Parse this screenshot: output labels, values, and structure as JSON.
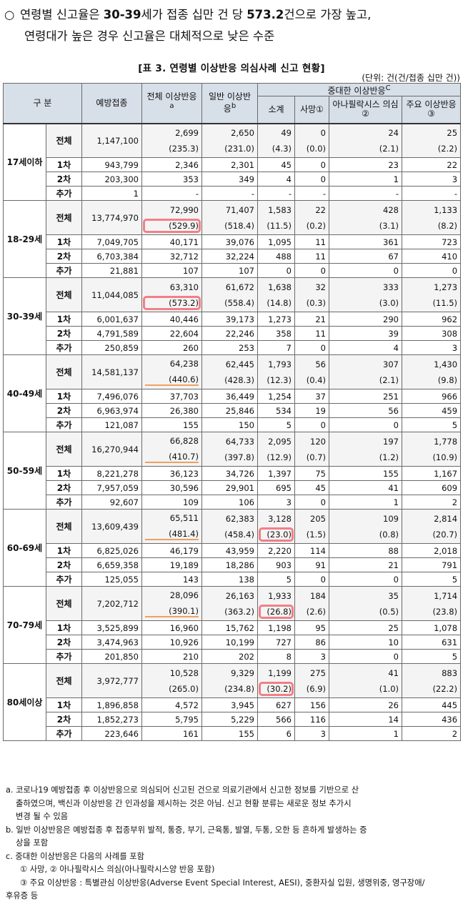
{
  "intro": {
    "line1_pre": "연령별 신고율은 ",
    "line1_bold1": "30-39",
    "line1_mid": "세가 접종 십만 건 당 ",
    "line1_bold2": "573.2",
    "line1_post": "건으로 가장 높고,",
    "line2": "연령대가 높은 경우 신고율은 대체적으로 낮은 수준"
  },
  "caption": "[표 3. 연령별 이상반응 의심사례 신고 현황]",
  "unit": "(단위: 건(건/접종 십만 건))",
  "headers": {
    "category": "구 분",
    "vaccinations": "예방접종",
    "total_ae": "전체 이상반응",
    "total_ae_sup": "a",
    "general_ae": "일반 이상반응",
    "general_ae_sup": "b",
    "serious_ae": "중대한 이상반응",
    "serious_ae_sup": "C",
    "subtotal": "소계",
    "death": "사망",
    "death_sup": "①",
    "anaphylaxis": "아나필락시스 의심",
    "anaphylaxis_sup": "②",
    "major": "주요 이상반응",
    "major_sup": "③"
  },
  "groups": [
    {
      "label": "17세이하",
      "rows": [
        {
          "sub": "전체",
          "v": "1,147,100",
          "t": "2,699",
          "tr": "(235.3)",
          "g": "2,650",
          "gr": "(231.0)",
          "s": "49",
          "sr": "(4.3)",
          "d": "0",
          "dr": "(0.0)",
          "a": "24",
          "ar": "(2.1)",
          "m": "25",
          "mr": "(2.2)"
        },
        {
          "sub": "1차",
          "v": "943,799",
          "t": "2,346",
          "g": "2,301",
          "s": "45",
          "d": "0",
          "a": "23",
          "m": "22"
        },
        {
          "sub": "2차",
          "v": "203,300",
          "t": "353",
          "g": "349",
          "s": "4",
          "d": "0",
          "a": "1",
          "m": "3"
        },
        {
          "sub": "추가",
          "v": "1",
          "t": "-",
          "g": "-",
          "s": "-",
          "d": "-",
          "a": "-",
          "m": "-"
        }
      ]
    },
    {
      "label": "18-29세",
      "rows": [
        {
          "sub": "전체",
          "v": "13,774,970",
          "t": "72,990",
          "tr": "(529.9)",
          "g": "71,407",
          "gr": "(518.4)",
          "s": "1,583",
          "sr": "(11.5)",
          "d": "22",
          "dr": "(0.2)",
          "a": "428",
          "ar": "(3.1)",
          "m": "1,133",
          "mr": "(8.2)"
        },
        {
          "sub": "1차",
          "v": "7,049,705",
          "t": "40,171",
          "g": "39,076",
          "s": "1,095",
          "d": "11",
          "a": "361",
          "m": "723"
        },
        {
          "sub": "2차",
          "v": "6,703,384",
          "t": "32,712",
          "g": "32,224",
          "s": "488",
          "d": "11",
          "a": "67",
          "m": "410"
        },
        {
          "sub": "추가",
          "v": "21,881",
          "t": "107",
          "g": "107",
          "s": "0",
          "d": "0",
          "a": "0",
          "m": "0"
        }
      ]
    },
    {
      "label": "30-39세",
      "rows": [
        {
          "sub": "전체",
          "v": "11,044,085",
          "t": "63,310",
          "tr": "(573.2)",
          "g": "61,672",
          "gr": "(558.4)",
          "s": "1,638",
          "sr": "(14.8)",
          "d": "32",
          "dr": "(0.3)",
          "a": "333",
          "ar": "(3.0)",
          "m": "1,273",
          "mr": "(11.5)"
        },
        {
          "sub": "1차",
          "v": "6,001,637",
          "t": "40,446",
          "g": "39,173",
          "s": "1,273",
          "d": "21",
          "a": "290",
          "m": "962"
        },
        {
          "sub": "2차",
          "v": "4,791,589",
          "t": "22,604",
          "g": "22,246",
          "s": "358",
          "d": "11",
          "a": "39",
          "m": "308"
        },
        {
          "sub": "추가",
          "v": "250,859",
          "t": "260",
          "g": "253",
          "s": "7",
          "d": "0",
          "a": "4",
          "m": "3"
        }
      ]
    },
    {
      "label": "40-49세",
      "rows": [
        {
          "sub": "전체",
          "v": "14,581,137",
          "t": "64,238",
          "tr": "(440.6)",
          "g": "62,445",
          "gr": "(428.3)",
          "s": "1,793",
          "sr": "(12.3)",
          "d": "56",
          "dr": "(0.4)",
          "a": "307",
          "ar": "(2.1)",
          "m": "1,430",
          "mr": "(9.8)"
        },
        {
          "sub": "1차",
          "v": "7,496,076",
          "t": "37,703",
          "g": "36,449",
          "s": "1,254",
          "d": "37",
          "a": "251",
          "m": "966"
        },
        {
          "sub": "2차",
          "v": "6,963,974",
          "t": "26,380",
          "g": "25,846",
          "s": "534",
          "d": "19",
          "a": "56",
          "m": "459"
        },
        {
          "sub": "추가",
          "v": "121,087",
          "t": "155",
          "g": "150",
          "s": "5",
          "d": "0",
          "a": "0",
          "m": "5"
        }
      ]
    },
    {
      "label": "50-59세",
      "rows": [
        {
          "sub": "전체",
          "v": "16,270,944",
          "t": "66,828",
          "tr": "(410.7)",
          "g": "64,733",
          "gr": "(397.8)",
          "s": "2,095",
          "sr": "(12.9)",
          "d": "120",
          "dr": "(0.7)",
          "a": "197",
          "ar": "(1.2)",
          "m": "1,778",
          "mr": "(10.9)"
        },
        {
          "sub": "1차",
          "v": "8,221,278",
          "t": "36,123",
          "g": "34,726",
          "s": "1,397",
          "d": "75",
          "a": "155",
          "m": "1,167"
        },
        {
          "sub": "2차",
          "v": "7,957,059",
          "t": "30,596",
          "g": "29,901",
          "s": "695",
          "d": "45",
          "a": "41",
          "m": "609"
        },
        {
          "sub": "추가",
          "v": "92,607",
          "t": "109",
          "g": "106",
          "s": "3",
          "d": "0",
          "a": "1",
          "m": "2"
        }
      ]
    },
    {
      "label": "60-69세",
      "rows": [
        {
          "sub": "전체",
          "v": "13,609,439",
          "t": "65,511",
          "tr": "(481.4)",
          "g": "62,383",
          "gr": "(458.4)",
          "s": "3,128",
          "sr": "(23.0)",
          "d": "205",
          "dr": "(1.5)",
          "a": "109",
          "ar": "(0.8)",
          "m": "2,814",
          "mr": "(20.7)"
        },
        {
          "sub": "1차",
          "v": "6,825,026",
          "t": "46,179",
          "g": "43,959",
          "s": "2,220",
          "d": "114",
          "a": "88",
          "m": "2,018"
        },
        {
          "sub": "2차",
          "v": "6,659,358",
          "t": "19,189",
          "g": "18,286",
          "s": "903",
          "d": "91",
          "a": "21",
          "m": "791"
        },
        {
          "sub": "추가",
          "v": "125,055",
          "t": "143",
          "g": "138",
          "s": "5",
          "d": "0",
          "a": "0",
          "m": "5"
        }
      ]
    },
    {
      "label": "70-79세",
      "rows": [
        {
          "sub": "전체",
          "v": "7,202,712",
          "t": "28,096",
          "tr": "(390.1)",
          "g": "26,163",
          "gr": "(363.2)",
          "s": "1,933",
          "sr": "(26.8)",
          "d": "184",
          "dr": "(2.6)",
          "a": "35",
          "ar": "(0.5)",
          "m": "1,714",
          "mr": "(23.8)"
        },
        {
          "sub": "1차",
          "v": "3,525,899",
          "t": "16,960",
          "g": "15,762",
          "s": "1,198",
          "d": "95",
          "a": "25",
          "m": "1,078"
        },
        {
          "sub": "2차",
          "v": "3,474,963",
          "t": "10,926",
          "g": "10,199",
          "s": "727",
          "d": "86",
          "a": "10",
          "m": "631"
        },
        {
          "sub": "추가",
          "v": "201,850",
          "t": "210",
          "g": "202",
          "s": "8",
          "d": "3",
          "a": "0",
          "m": "5"
        }
      ]
    },
    {
      "label": "80세이상",
      "rows": [
        {
          "sub": "전체",
          "v": "3,972,777",
          "t": "10,528",
          "tr": "(265.0)",
          "g": "9,329",
          "gr": "(234.8)",
          "s": "1,199",
          "sr": "(30.2)",
          "d": "275",
          "dr": "(6.9)",
          "a": "41",
          "ar": "(1.0)",
          "m": "883",
          "mr": "(22.2)"
        },
        {
          "sub": "1차",
          "v": "1,896,858",
          "t": "4,572",
          "g": "3,945",
          "s": "627",
          "d": "156",
          "a": "26",
          "m": "445"
        },
        {
          "sub": "2차",
          "v": "1,852,273",
          "t": "5,795",
          "g": "5,229",
          "s": "566",
          "d": "116",
          "a": "14",
          "m": "436"
        },
        {
          "sub": "추가",
          "v": "223,646",
          "t": "161",
          "g": "155",
          "s": "6",
          "d": "3",
          "a": "1",
          "m": "2"
        }
      ]
    }
  ],
  "notes": {
    "a1": "a. 코로나19 예방접종 후 이상반응으로 의심되어 신고된 건으로 의료기관에서 신고한 정보를 기반으로 산",
    "a2": "출하였으며,    백신과 이상반응 간 인과성을 제시하는 것은 아님. 신고 현황 분류는 새로운 정보 추가시",
    "a3": "변경 될 수 있음",
    "b1": "b. 일반 이상반응은 예방접종 후 접종부위 발적, 통증, 부기, 근육통, 발열, 두통, 오한 등 흔하게 발생하는 증",
    "b2": "상을 포함",
    "c1": "c. 중대한 이상반응은 다음의 사례를 포함",
    "c2": "① 사망, ② 아나필락시스 의심(아나필락시스양 반응 포함)",
    "c3": "③ 주요 이상반응 : 특별관심 이상반응(Adverse Event Special Interest, AESI), 중환자실 입원, 생명위중, 영구장애/",
    "c4": "후유증 등"
  },
  "highlight": {
    "box_color": "#f27f86",
    "underline_color": "#f0a060"
  }
}
